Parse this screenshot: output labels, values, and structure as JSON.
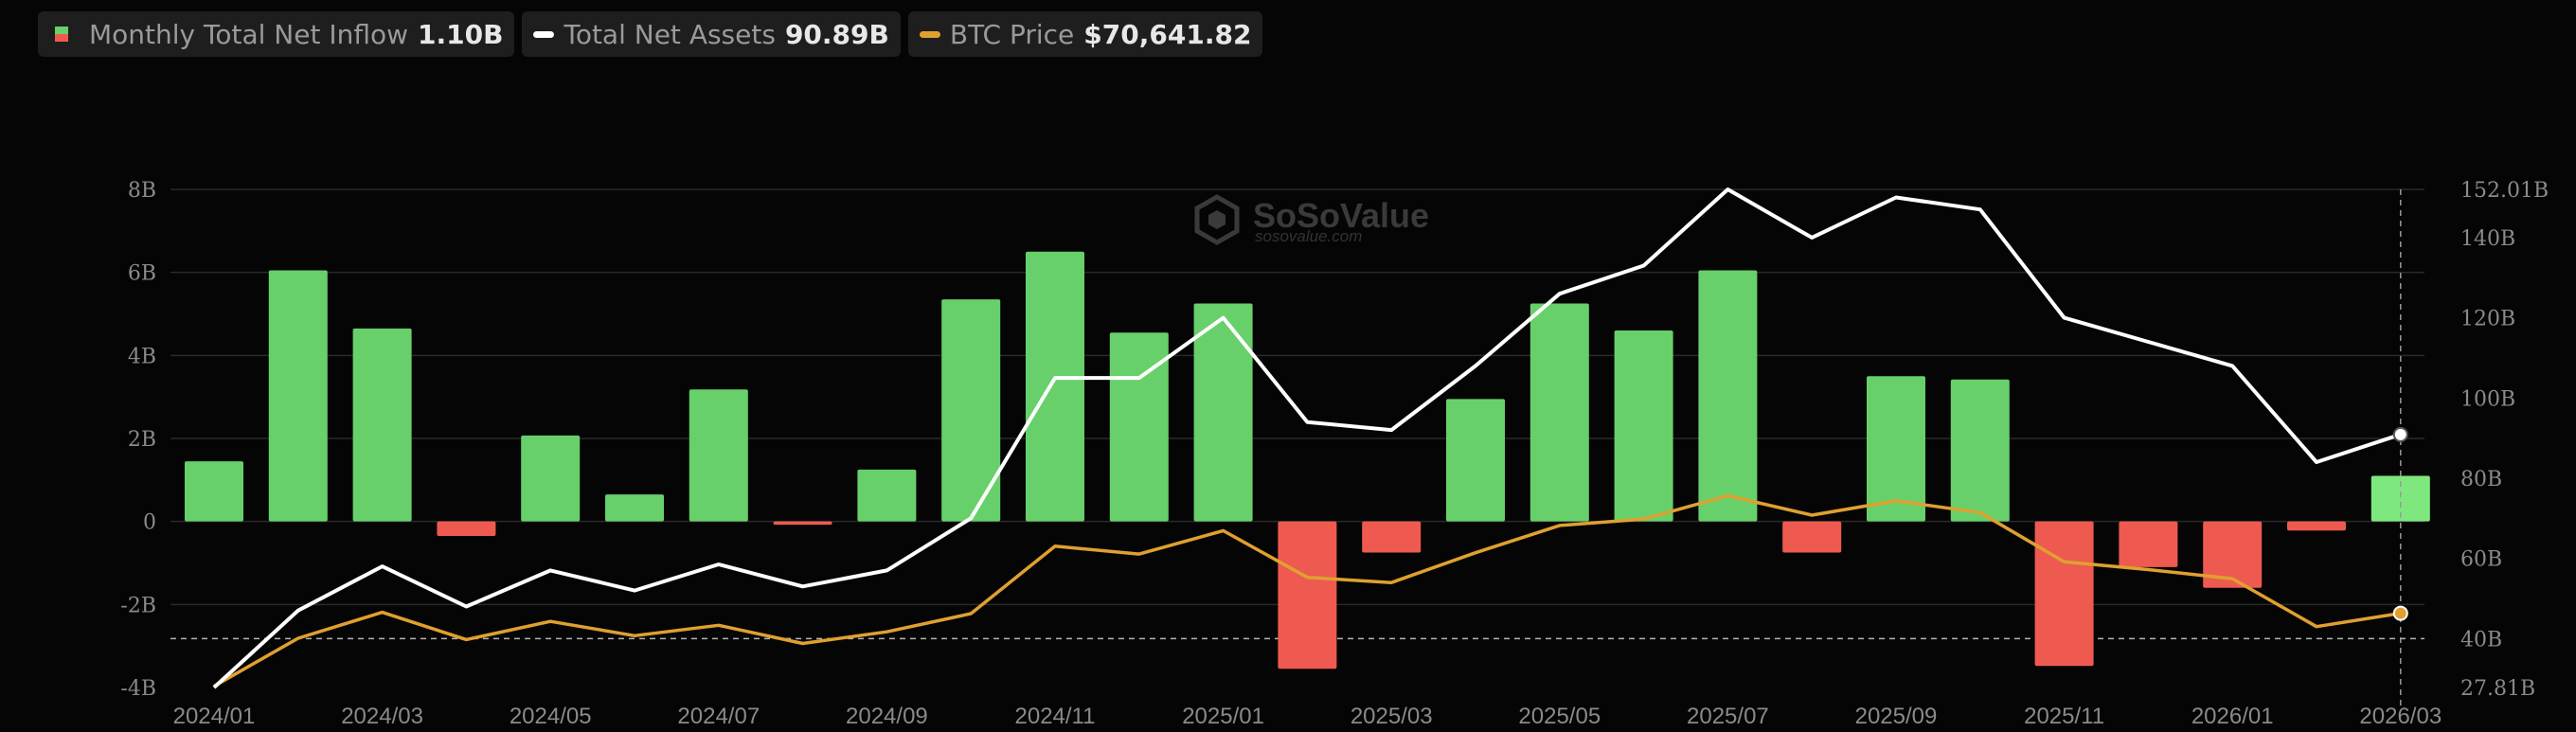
{
  "legend": {
    "inflow": {
      "label": "Monthly Total Net Inflow",
      "value": "1.10B"
    },
    "assets": {
      "label": "Total Net Assets",
      "value": "90.89B"
    },
    "btc": {
      "label": "BTC Price",
      "value": "$70,641.82"
    }
  },
  "watermark": {
    "name": "SoSoValue",
    "url": "sosovalue.com"
  },
  "colors": {
    "positive": "#67d06a",
    "positive_highlight": "#7ee87e",
    "negative": "#ee5a4f",
    "assets_line": "#ffffff",
    "btc_line": "#e0a030",
    "grid": "#2a2a2a",
    "background": "#050505"
  },
  "chart_data": {
    "type": "bar",
    "x": [
      "2024/01",
      "2024/02",
      "2024/03",
      "2024/04",
      "2024/05",
      "2024/06",
      "2024/07",
      "2024/08",
      "2024/09",
      "2024/10",
      "2024/11",
      "2024/12",
      "2025/01",
      "2025/02",
      "2025/03",
      "2025/04",
      "2025/05",
      "2025/06",
      "2025/07",
      "2025/08",
      "2025/09",
      "2025/10",
      "2025/11",
      "2025/12",
      "2026/01",
      "2026/02",
      "2026/03"
    ],
    "x_tick_labels": [
      "2024/01",
      "2024/03",
      "2024/05",
      "2024/07",
      "2024/09",
      "2024/11",
      "2025/01",
      "2025/03",
      "2025/05",
      "2025/07",
      "2025/09",
      "2025/11",
      "2026/01",
      "2026/03"
    ],
    "series": [
      {
        "name": "Monthly Total Net Inflow",
        "type": "bar",
        "axis": "left",
        "unit": "B",
        "values": [
          1.45,
          6.05,
          4.65,
          -0.35,
          2.07,
          0.65,
          3.18,
          -0.08,
          1.25,
          5.35,
          6.5,
          4.55,
          5.25,
          -3.55,
          -0.75,
          2.95,
          5.25,
          4.6,
          6.05,
          -0.75,
          3.5,
          3.42,
          -3.48,
          -1.1,
          -1.6,
          -0.22,
          1.1
        ]
      },
      {
        "name": "Total Net Assets",
        "type": "line",
        "axis": "right",
        "unit": "B",
        "values": [
          27.81,
          47,
          58,
          48,
          57,
          52,
          58.5,
          53,
          57,
          70,
          105,
          105,
          120,
          94,
          92,
          108,
          126,
          133,
          152,
          140,
          150,
          147,
          120,
          114,
          108,
          84,
          90.89
        ]
      },
      {
        "name": "BTC Price",
        "type": "line",
        "axis": "right_hidden",
        "unit": "USD",
        "values": [
          42500,
          61000,
          71000,
          60500,
          67500,
          62000,
          66000,
          59000,
          63500,
          70500,
          96500,
          93500,
          102500,
          84500,
          82500,
          94000,
          104500,
          107000,
          116000,
          108500,
          114000,
          109500,
          90500,
          87500,
          84000,
          65500,
          70641.82
        ]
      }
    ],
    "y_left": {
      "ticks": [
        "-4B",
        "-2B",
        "0",
        "2B",
        "4B",
        "6B",
        "8B"
      ],
      "min": -4,
      "max": 8
    },
    "y_right": {
      "ticks": [
        "27.81B",
        "40B",
        "60B",
        "80B",
        "100B",
        "120B",
        "140B",
        "152.01B"
      ],
      "min": 27.81,
      "max": 152.01
    },
    "btc_range": [
      42000,
      118000
    ],
    "reference_line_right_value": 40,
    "grid": true,
    "legend_position": "top-left"
  }
}
